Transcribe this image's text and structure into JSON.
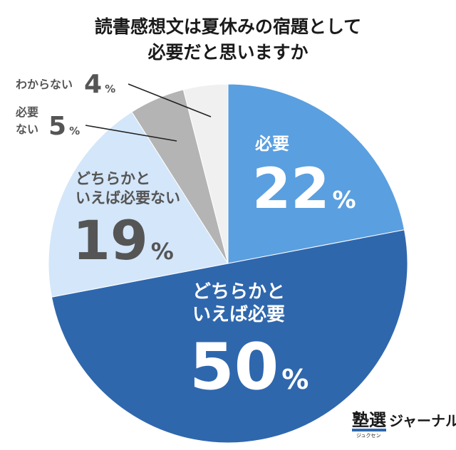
{
  "title": [
    "読書感想文は夏休みの宿題として",
    "必要だと思いますか"
  ],
  "chart_data": {
    "type": "pie",
    "title": "読書感想文は夏休みの宿題として必要だと思いますか",
    "unit": "%",
    "slices": [
      {
        "name": "必要",
        "label_lines": [
          "必要"
        ],
        "value": 22,
        "value_text": "22",
        "color": "#5a9fe0"
      },
      {
        "name": "どちらかといえば必要",
        "label_lines": [
          "どちらかと",
          "いえば必要"
        ],
        "value": 50,
        "value_text": "50",
        "color": "#2f67ad"
      },
      {
        "name": "どちらかといえば必要ない",
        "label_lines": [
          "どちらかと",
          "いえば必要ない"
        ],
        "value": 19,
        "value_text": "19",
        "color": "#d4e6f9"
      },
      {
        "name": "必要ない",
        "label_lines": [
          "必要",
          "ない"
        ],
        "value": 5,
        "value_text": "5",
        "color": "#b4b4b4"
      },
      {
        "name": "わからない",
        "label_lines": [
          "わからない"
        ],
        "value": 4,
        "value_text": "4",
        "color": "#f0f0f0"
      }
    ],
    "start_angle": "12 o'clock",
    "direction": "clockwise",
    "legend": "none"
  },
  "logo": {
    "main": "塾選",
    "sub": "ジュクセン",
    "word": "ジャーナル",
    "accent": "#2f67ad"
  }
}
